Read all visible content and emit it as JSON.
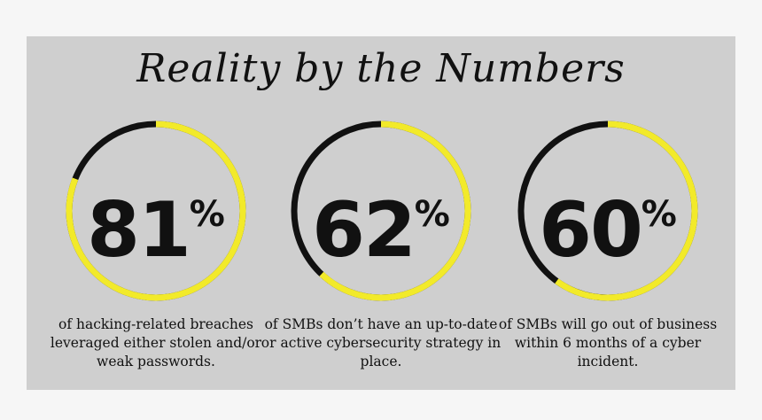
{
  "title": "Reality by the Numbers",
  "colors": {
    "panel": "#cfcfcf",
    "ring_accent": "#f2ea2a",
    "ring_dark": "#111111"
  },
  "stats": [
    {
      "number": "81",
      "unit": "%",
      "value_percent": 81,
      "caption": "of hacking-related breaches leveraged either stolen and/or weak passwords."
    },
    {
      "number": "62",
      "unit": "%",
      "value_percent": 62,
      "caption": "of SMBs don’t have an up-to-date or active cybersecurity strategy in place."
    },
    {
      "number": "60",
      "unit": "%",
      "value_percent": 60,
      "caption": "of SMBs will go out of business within 6 months of a cyber incident."
    }
  ]
}
